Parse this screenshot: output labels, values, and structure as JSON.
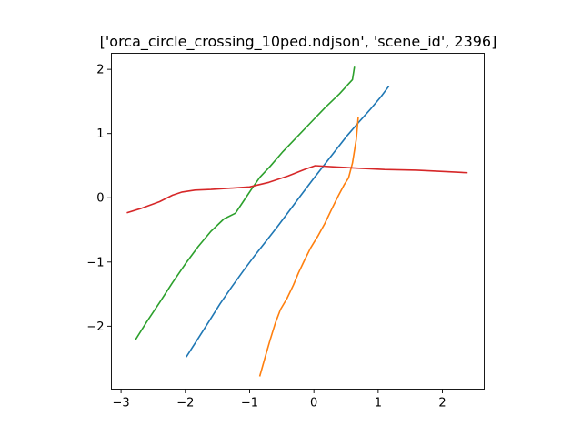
{
  "chart_data": {
    "type": "line",
    "title": "['orca_circle_crossing_10ped.ndjson', 'scene_id', 2396]",
    "xlabel": "",
    "ylabel": "",
    "xlim": [
      -3.15,
      2.65
    ],
    "ylim": [
      -2.98,
      2.25
    ],
    "xticks": [
      -3,
      -2,
      -1,
      0,
      1,
      2
    ],
    "xtick_labels": [
      "−3",
      "−2",
      "−1",
      "0",
      "1",
      "2"
    ],
    "yticks": [
      2,
      1,
      0,
      -1,
      -2
    ],
    "ytick_labels": [
      "2",
      "1",
      "0",
      "−1",
      "−2"
    ],
    "grid": false,
    "legend": "none",
    "series": [
      {
        "color": "#1f77b4",
        "points": [
          [
            -1.98,
            -2.47
          ],
          [
            -1.82,
            -2.22
          ],
          [
            -1.64,
            -1.94
          ],
          [
            -1.46,
            -1.65
          ],
          [
            -1.28,
            -1.39
          ],
          [
            -1.1,
            -1.14
          ],
          [
            -0.92,
            -0.9
          ],
          [
            -0.74,
            -0.67
          ],
          [
            -0.56,
            -0.44
          ],
          [
            -0.38,
            -0.2
          ],
          [
            -0.2,
            0.04
          ],
          [
            -0.02,
            0.28
          ],
          [
            0.16,
            0.51
          ],
          [
            0.34,
            0.74
          ],
          [
            0.52,
            0.97
          ],
          [
            0.7,
            1.18
          ],
          [
            0.88,
            1.38
          ],
          [
            1.04,
            1.57
          ],
          [
            1.16,
            1.73
          ]
        ]
      },
      {
        "color": "#ff7f0e",
        "points": [
          [
            -0.84,
            -2.77
          ],
          [
            -0.76,
            -2.49
          ],
          [
            -0.68,
            -2.21
          ],
          [
            -0.6,
            -1.95
          ],
          [
            -0.52,
            -1.74
          ],
          [
            -0.42,
            -1.57
          ],
          [
            -0.32,
            -1.36
          ],
          [
            -0.24,
            -1.17
          ],
          [
            -0.15,
            -0.98
          ],
          [
            -0.05,
            -0.78
          ],
          [
            0.06,
            -0.6
          ],
          [
            0.17,
            -0.4
          ],
          [
            0.27,
            -0.19
          ],
          [
            0.38,
            0.03
          ],
          [
            0.47,
            0.2
          ],
          [
            0.54,
            0.31
          ],
          [
            0.6,
            0.54
          ],
          [
            0.66,
            0.91
          ],
          [
            0.69,
            1.25
          ]
        ]
      },
      {
        "color": "#2ca02c",
        "points": [
          [
            -2.77,
            -2.2
          ],
          [
            -2.6,
            -1.93
          ],
          [
            -2.4,
            -1.63
          ],
          [
            -2.2,
            -1.32
          ],
          [
            -2.0,
            -1.03
          ],
          [
            -1.8,
            -0.76
          ],
          [
            -1.6,
            -0.52
          ],
          [
            -1.4,
            -0.33
          ],
          [
            -1.22,
            -0.24
          ],
          [
            -1.1,
            -0.06
          ],
          [
            -0.96,
            0.15
          ],
          [
            -0.84,
            0.32
          ],
          [
            -0.68,
            0.49
          ],
          [
            -0.48,
            0.72
          ],
          [
            -0.26,
            0.95
          ],
          [
            -0.04,
            1.18
          ],
          [
            0.18,
            1.41
          ],
          [
            0.4,
            1.62
          ],
          [
            0.6,
            1.84
          ],
          [
            0.63,
            2.03
          ]
        ]
      },
      {
        "color": "#d62728",
        "points": [
          [
            -2.9,
            -0.23
          ],
          [
            -2.7,
            -0.17
          ],
          [
            -2.4,
            -0.06
          ],
          [
            -2.2,
            0.04
          ],
          [
            -2.05,
            0.09
          ],
          [
            -1.85,
            0.12
          ],
          [
            -1.6,
            0.13
          ],
          [
            -1.3,
            0.15
          ],
          [
            -1.0,
            0.17
          ],
          [
            -0.7,
            0.24
          ],
          [
            -0.4,
            0.34
          ],
          [
            -0.15,
            0.44
          ],
          [
            0.02,
            0.5
          ],
          [
            0.35,
            0.48
          ],
          [
            0.7,
            0.46
          ],
          [
            1.1,
            0.44
          ],
          [
            1.6,
            0.43
          ],
          [
            2.0,
            0.41
          ],
          [
            2.38,
            0.39
          ]
        ]
      }
    ]
  }
}
